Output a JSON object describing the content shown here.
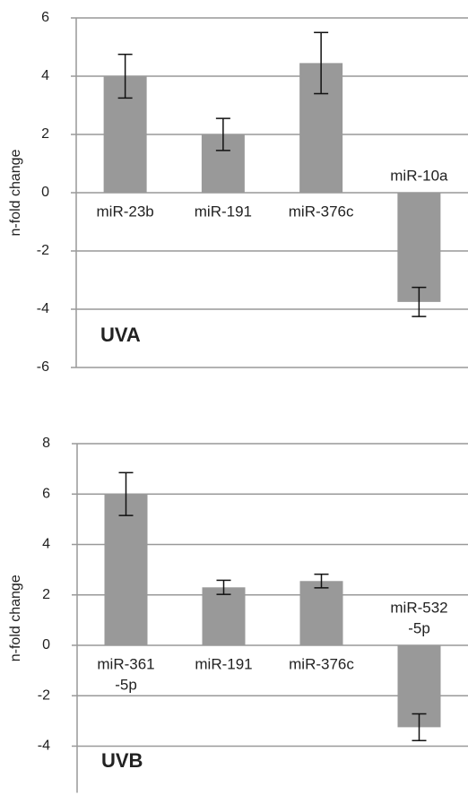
{
  "chart_data": [
    {
      "type": "bar",
      "y_label": "n-fold change",
      "annotation": "UVA",
      "categories": [
        [
          "miR-23b"
        ],
        [
          "miR-191"
        ],
        [
          "miR-376c"
        ],
        [
          "miR-10a"
        ]
      ],
      "values": [
        4.0,
        2.0,
        4.45,
        -3.75
      ],
      "errors": [
        0.75,
        0.55,
        1.05,
        0.5
      ],
      "color": "#999999",
      "ylim": [
        -6,
        6
      ],
      "yticks": [
        -6,
        -4,
        -2,
        0,
        2,
        4,
        6
      ],
      "grid": true
    },
    {
      "type": "bar",
      "y_label": "n-fold change",
      "annotation": "UVB",
      "categories": [
        [
          "miR-361",
          "-5p"
        ],
        [
          "miR-191"
        ],
        [
          "miR-376c"
        ],
        [
          "miR-532",
          "-5p"
        ]
      ],
      "values": [
        6.0,
        2.3,
        2.55,
        -3.25
      ],
      "errors": [
        0.85,
        0.28,
        0.27,
        0.53
      ],
      "color": "#999999",
      "ylim": [
        -5.85,
        8
      ],
      "yticks": [
        -4,
        -2,
        0,
        2,
        4,
        6,
        8
      ],
      "grid": true
    }
  ]
}
